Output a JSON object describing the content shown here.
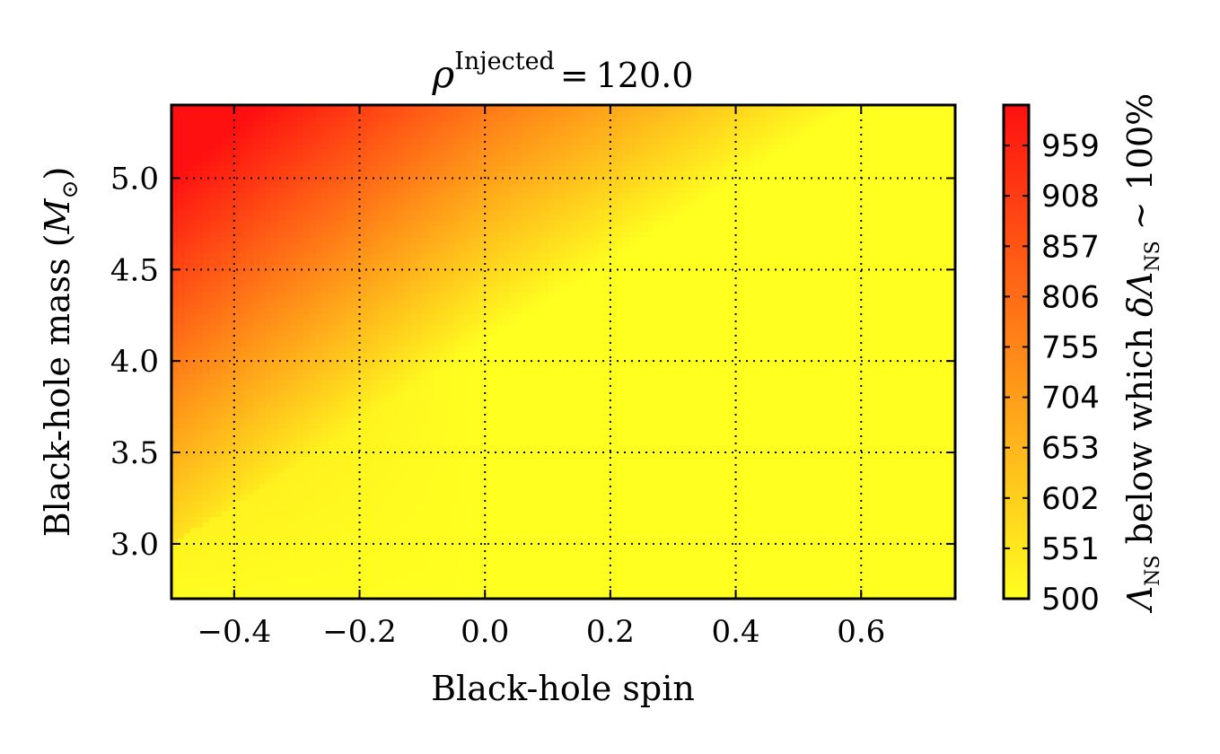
{
  "chart_data": {
    "type": "heatmap",
    "title": {
      "symbol": "ρ",
      "superscript": "Injected",
      "equals": "=",
      "value": "120.0"
    },
    "xlabel": "Black-hole spin",
    "ylabel": {
      "text": "Black-hole mass (",
      "unit_symbol": "M",
      "unit_subscript": "⊙",
      "close": ")"
    },
    "xlim": [
      -0.5,
      0.75
    ],
    "ylim": [
      2.7,
      5.4
    ],
    "xticks": [
      -0.4,
      -0.2,
      0.0,
      0.2,
      0.4,
      0.6
    ],
    "xtick_labels": [
      "−0.4",
      "−0.2",
      "0.0",
      "0.2",
      "0.4",
      "0.6"
    ],
    "yticks": [
      3.0,
      3.5,
      4.0,
      4.5,
      5.0
    ],
    "ytick_labels": [
      "3.0",
      "3.5",
      "4.0",
      "4.5",
      "5.0"
    ],
    "grid": true,
    "colormap": "autumn_r",
    "color_low": "#ffff20",
    "color_high": "#ff1010",
    "colorbar": {
      "range": [
        500,
        1000
      ],
      "ticks": [
        500,
        551,
        602,
        653,
        704,
        755,
        806,
        857,
        908,
        959
      ],
      "tick_labels": [
        "500",
        "551",
        "602",
        "653",
        "704",
        "755",
        "806",
        "857",
        "908",
        "959"
      ],
      "label": {
        "symbol": "Λ",
        "subscript": "NS",
        "middle": " below which ",
        "delta_symbol": "δΛ",
        "delta_subscript": "NS",
        "tail": " ∼ 100%"
      }
    },
    "field_description_values": {
      "corner_top_left": 1000,
      "at_spin_0_mass_5.4": 820,
      "at_spin_-0.5_mass_4.5": 720,
      "at_spin_-0.5_mass_2.7": 580,
      "right_region": 500
    }
  }
}
